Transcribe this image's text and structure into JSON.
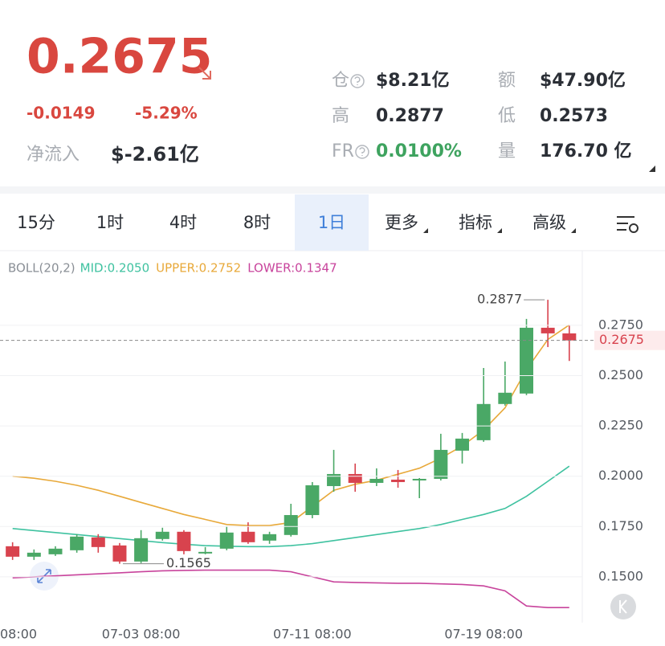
{
  "header": {
    "price": "0.2675",
    "change": "-0.0149",
    "change_pct": "-5.29%",
    "net_inflow_label": "净流入",
    "net_inflow": "$-2.61亿"
  },
  "stats": [
    {
      "label": "仓",
      "value": "$8.21亿"
    },
    {
      "label": "额",
      "value": "$47.90亿"
    },
    {
      "label": "高",
      "value": "0.2877"
    },
    {
      "label": "低",
      "value": "0.2573"
    },
    {
      "label": "FR",
      "value": "0.0100%"
    },
    {
      "label": "量",
      "value": "176.70 亿"
    }
  ],
  "tabs": [
    {
      "label": "15分",
      "selected": false,
      "dropdown": false
    },
    {
      "label": "1时",
      "selected": false,
      "dropdown": false
    },
    {
      "label": "4时",
      "selected": false,
      "dropdown": false
    },
    {
      "label": "8时",
      "selected": false,
      "dropdown": false
    },
    {
      "label": "1日",
      "selected": true,
      "dropdown": false
    },
    {
      "label": "更多",
      "selected": false,
      "dropdown": true
    },
    {
      "label": "指标",
      "selected": false,
      "dropdown": true
    },
    {
      "label": "高级",
      "selected": false,
      "dropdown": true
    }
  ],
  "chart_data": {
    "type": "candlestick",
    "indicator": "BOLL(20,2)",
    "categories": [
      "08:00",
      null,
      null,
      null,
      null,
      null,
      null,
      "07-03 08:00",
      null,
      null,
      null,
      null,
      null,
      null,
      null,
      "07-11 08:00",
      null,
      null,
      null,
      null,
      null,
      null,
      null,
      "07-19 08:00",
      null,
      null,
      null,
      null
    ],
    "open": [
      null,
      0.1652,
      0.16,
      0.1612,
      0.1632,
      0.1696,
      0.1656,
      0.1576,
      0.1688,
      0.1724,
      0.1616,
      0.164,
      0.1724,
      0.168,
      0.1708,
      0.1807,
      0.1951,
      0.2011,
      0.1967,
      0.1983,
      0.1979,
      0.1987,
      0.2127,
      0.2179,
      0.2359,
      0.2411,
      0.2738,
      0.271
    ],
    "high": [
      null,
      0.1672,
      0.1636,
      0.1652,
      0.1712,
      0.1712,
      0.1668,
      0.1732,
      0.1744,
      0.1732,
      0.1648,
      0.1751,
      0.1771,
      0.1724,
      0.1863,
      0.1971,
      0.2131,
      0.2063,
      0.2039,
      0.2031,
      0.1991,
      0.2211,
      0.2215,
      0.2538,
      0.257,
      0.2782,
      0.2877,
      0.275
    ],
    "low": [
      null,
      0.1584,
      0.1584,
      0.1604,
      0.162,
      0.162,
      0.1565,
      0.1568,
      0.168,
      0.1612,
      0.1612,
      0.1632,
      0.1664,
      0.1664,
      0.17,
      0.1791,
      0.1923,
      0.1923,
      0.1951,
      0.1943,
      0.1891,
      0.1979,
      0.2063,
      0.2171,
      0.2351,
      0.2403,
      0.2642,
      0.2573
    ],
    "close": [
      null,
      0.16,
      0.162,
      0.164,
      0.17,
      0.1648,
      0.1576,
      0.1692,
      0.1724,
      0.1628,
      0.1624,
      0.172,
      0.1672,
      0.1712,
      0.1807,
      0.1955,
      0.2011,
      0.1967,
      0.1987,
      0.1971,
      0.1987,
      0.2131,
      0.2187,
      0.2359,
      0.2415,
      0.2738,
      0.271,
      0.2675
    ],
    "up_color": "#4aa866",
    "down_color": "#d8434e",
    "series": [
      {
        "name": "MID:0.2050",
        "color": "#3fc2a0",
        "values": [
          null,
          0.174,
          0.173,
          0.172,
          0.171,
          0.17,
          0.169,
          0.168,
          0.167,
          0.1662,
          0.1655,
          0.1652,
          0.165,
          0.165,
          0.1655,
          0.1665,
          0.168,
          0.1695,
          0.171,
          0.1725,
          0.174,
          0.176,
          0.1785,
          0.181,
          0.184,
          0.19,
          0.1975,
          0.205
        ]
      },
      {
        "name": "UPPER:0.2752",
        "color": "#e8a93a",
        "values": [
          null,
          0.2,
          0.199,
          0.1975,
          0.1955,
          0.193,
          0.19,
          0.187,
          0.184,
          0.181,
          0.1785,
          0.176,
          0.1755,
          0.1755,
          0.177,
          0.185,
          0.193,
          0.196,
          0.198,
          0.201,
          0.204,
          0.209,
          0.215,
          0.223,
          0.234,
          0.253,
          0.268,
          0.2752
        ]
      },
      {
        "name": "LOWER:0.1347",
        "color": "#c8449c",
        "values": [
          null,
          0.1495,
          0.15,
          0.1505,
          0.151,
          0.1515,
          0.152,
          0.1525,
          0.153,
          0.1532,
          0.1533,
          0.1533,
          0.1533,
          0.1533,
          0.1525,
          0.15,
          0.1475,
          0.1472,
          0.147,
          0.1468,
          0.1468,
          0.1465,
          0.1462,
          0.1455,
          0.143,
          0.1355,
          0.1347,
          0.1347
        ]
      }
    ],
    "last_price": 0.2675,
    "ylim": [
      0.1272,
      0.3121
    ],
    "yticks": [
      {
        "value": 0.15,
        "label": "0.1500"
      },
      {
        "value": 0.175,
        "label": "0.1750"
      },
      {
        "value": 0.2,
        "label": "0.2000"
      },
      {
        "value": 0.225,
        "label": "0.2250"
      },
      {
        "value": 0.25,
        "label": "0.2500"
      },
      {
        "value": 0.275,
        "label": "0.2750"
      }
    ],
    "grid": true
  }
}
